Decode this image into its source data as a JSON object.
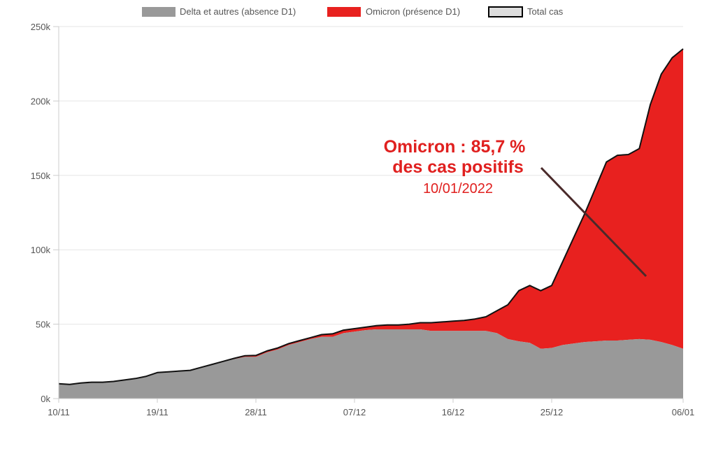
{
  "chart_data": {
    "type": "area",
    "title": "",
    "xlabel": "",
    "ylabel": "",
    "ylim": [
      0,
      250000
    ],
    "y_ticks": [
      "0k",
      "50k",
      "100k",
      "150k",
      "200k",
      "250k"
    ],
    "x_tick_labels": [
      "10/11",
      "19/11",
      "28/11",
      "07/12",
      "16/12",
      "25/12",
      "06/01"
    ],
    "grid": "horizontal",
    "legend_position": "top",
    "x": [
      "10/11",
      "11/11",
      "12/11",
      "13/11",
      "14/11",
      "15/11",
      "16/11",
      "17/11",
      "18/11",
      "19/11",
      "20/11",
      "21/11",
      "22/11",
      "23/11",
      "24/11",
      "25/11",
      "26/11",
      "27/11",
      "28/11",
      "29/11",
      "30/11",
      "01/12",
      "02/12",
      "03/12",
      "04/12",
      "05/12",
      "06/12",
      "07/12",
      "08/12",
      "09/12",
      "10/12",
      "11/12",
      "12/12",
      "13/12",
      "14/12",
      "15/12",
      "16/12",
      "17/12",
      "18/12",
      "19/12",
      "20/12",
      "21/12",
      "22/12",
      "23/12",
      "24/12",
      "25/12",
      "26/12",
      "27/12",
      "28/12",
      "29/12",
      "30/12",
      "31/12",
      "01/01",
      "02/01",
      "03/01",
      "04/01",
      "05/01",
      "06/01"
    ],
    "series": [
      {
        "name": "Delta et autres (absence D1)",
        "color": "#999999",
        "values": [
          10000,
          9500,
          10500,
          11000,
          11000,
          11500,
          12500,
          13500,
          15000,
          17500,
          18000,
          18500,
          19000,
          21000,
          23000,
          25000,
          26500,
          28000,
          28000,
          31000,
          33000,
          36000,
          38000,
          40000,
          41500,
          41500,
          44000,
          45000,
          46000,
          46500,
          46500,
          46500,
          46500,
          46500,
          45500,
          45500,
          45500,
          45500,
          45500,
          45500,
          44000,
          40000,
          38500,
          37500,
          33500,
          34000,
          36000,
          37000,
          38000,
          38500,
          39000,
          39000,
          39500,
          40000,
          39500,
          38000,
          36000,
          33500
        ]
      },
      {
        "name": "Omicron (présence D1)",
        "color": "#e8211f",
        "values": [
          0,
          0,
          0,
          0,
          0,
          0,
          0,
          0,
          0,
          0,
          0,
          0,
          0,
          0,
          0,
          0,
          500,
          800,
          1000,
          1000,
          1000,
          1000,
          1000,
          1000,
          1500,
          2000,
          2000,
          2000,
          2000,
          2500,
          3000,
          3000,
          3500,
          4500,
          5500,
          6000,
          6500,
          7000,
          8000,
          9500,
          15000,
          23000,
          34000,
          38500,
          39000,
          42000,
          56000,
          71000,
          86000,
          103000,
          120000,
          124500,
          124500,
          128000,
          158000,
          180000,
          193000,
          201500
        ]
      },
      {
        "name": "Total cas",
        "color": "#dddddd",
        "values": [
          10000,
          9500,
          10500,
          11000,
          11000,
          11500,
          12500,
          13500,
          15000,
          17500,
          18000,
          18500,
          19000,
          21000,
          23000,
          25000,
          27000,
          28800,
          29000,
          32000,
          34000,
          37000,
          39000,
          41000,
          43000,
          43500,
          46000,
          47000,
          48000,
          49000,
          49500,
          49500,
          50000,
          51000,
          51000,
          51500,
          52000,
          52500,
          53500,
          55000,
          59000,
          63000,
          72500,
          76000,
          72500,
          76000,
          92000,
          108000,
          124000,
          141500,
          159000,
          163500,
          164000,
          168000,
          197500,
          218000,
          229000,
          235000
        ]
      }
    ],
    "annotation": {
      "line1": "Omicron : 85,7 %",
      "line2": "des cas positifs",
      "date": "10/01/2022"
    }
  }
}
